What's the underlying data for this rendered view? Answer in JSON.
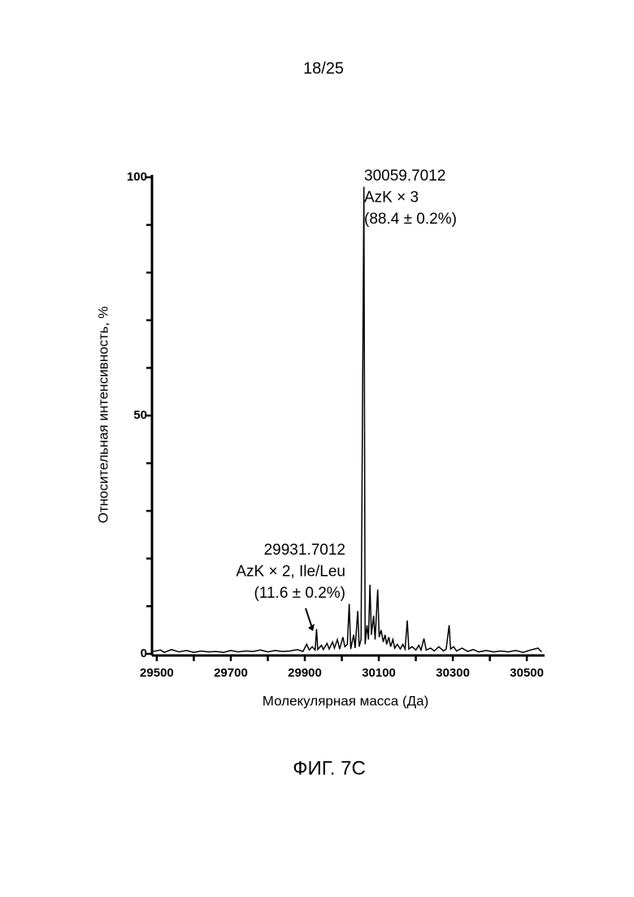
{
  "page_number": "18/25",
  "caption": "ФИГ. 7C",
  "chart_data": {
    "type": "line",
    "x_label": "Молекулярная масса (Да)",
    "y_label": "Относительная интенсивность, %",
    "xlim": [
      29487,
      30548
    ],
    "xticks": [
      29500,
      29700,
      29900,
      30100,
      30300,
      30500
    ],
    "xminorticks": [
      29600,
      29800,
      30000,
      30200,
      30400
    ],
    "ylim": [
      0,
      100
    ],
    "yticks": [
      0,
      50,
      100
    ],
    "yminorticks": [
      10,
      20,
      30,
      40,
      60,
      70,
      80,
      90
    ],
    "annotations": [
      {
        "lines": [
          "30059.7012",
          "AzK × 3",
          "(88.4 ± 0.2%)"
        ]
      },
      {
        "lines": [
          "29931.7012",
          "AzK × 2, Ile/Leu",
          "(11.6 ± 0.2%)"
        ]
      }
    ],
    "series": [
      {
        "color": "#000000",
        "x": [
          29490,
          29510,
          29520,
          29540,
          29560,
          29580,
          29600,
          29620,
          29640,
          29660,
          29680,
          29700,
          29720,
          29740,
          29760,
          29780,
          29800,
          29820,
          29840,
          29860,
          29880,
          29895,
          29905,
          29912,
          29920,
          29928,
          29931.7,
          29935,
          29945,
          29950,
          29960,
          29966,
          29975,
          29980,
          29988,
          29994,
          30003,
          30008,
          30015,
          30020,
          30024,
          30032,
          30036,
          30043,
          30047,
          30052,
          30059.7,
          30063,
          30068,
          30072,
          30076,
          30080,
          30086,
          30090,
          30097,
          30101,
          30106,
          30112,
          30117,
          30121,
          30127,
          30132,
          30138,
          30143,
          30150,
          30158,
          30165,
          30171,
          30177,
          30181,
          30190,
          30200,
          30208,
          30214,
          30222,
          30228,
          30240,
          30250,
          30262,
          30275,
          30282,
          30290,
          30294,
          30302,
          30310,
          30325,
          30340,
          30355,
          30370,
          30390,
          30410,
          30430,
          30450,
          30470,
          30490,
          30510,
          30530,
          30540
        ],
        "values": [
          0.5,
          0.8,
          0.3,
          0.9,
          0.4,
          0.7,
          0.3,
          0.6,
          0.4,
          0.5,
          0.3,
          0.7,
          0.4,
          0.6,
          0.5,
          0.8,
          0.4,
          0.7,
          0.5,
          0.6,
          0.9,
          0.5,
          2.0,
          0.8,
          1.5,
          0.8,
          5.2,
          0.9,
          1.8,
          0.9,
          2.2,
          1.0,
          2.5,
          1.2,
          3.0,
          1.0,
          3.5,
          1.5,
          2.0,
          10.5,
          1.0,
          4.0,
          1.2,
          9.0,
          1.5,
          3.0,
          98,
          2.0,
          6.0,
          3.0,
          14.5,
          4.0,
          8.0,
          3.0,
          13.5,
          3.5,
          5.0,
          2.5,
          4.0,
          2.0,
          3.5,
          1.5,
          3.0,
          1.2,
          2.0,
          1.0,
          2.0,
          1.0,
          7.0,
          1.0,
          1.5,
          0.8,
          1.8,
          0.8,
          3.2,
          0.8,
          1.2,
          0.6,
          1.5,
          0.6,
          1.0,
          6.0,
          1.0,
          1.5,
          0.6,
          1.2,
          0.5,
          0.9,
          0.4,
          0.7,
          0.4,
          0.6,
          0.4,
          0.7,
          0.3,
          0.8,
          1.2,
          0.4
        ]
      }
    ]
  }
}
